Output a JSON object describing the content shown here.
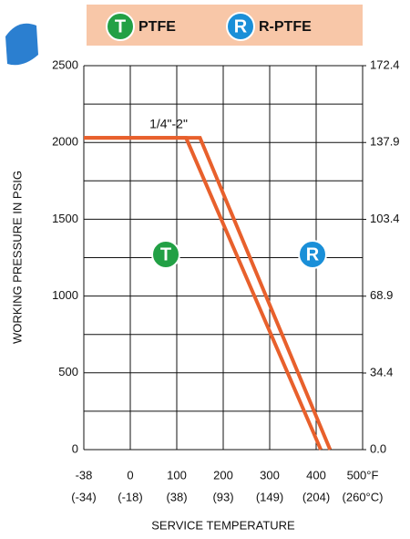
{
  "chart_data": {
    "type": "line",
    "legend": [
      {
        "badge": "T",
        "name": "PTFE",
        "color": "#22a045"
      },
      {
        "badge": "R",
        "name": "R-PTFE",
        "color": "#1a8fd8"
      }
    ],
    "annotation": "1/4\"-2\"",
    "x_label": "SERVICE TEMPERATURE",
    "y_label": "WORKING PRESSURE IN PSIG",
    "xlim": [
      -38,
      500
    ],
    "xticks": [
      -38,
      0,
      100,
      200,
      300,
      400,
      {
        "value": 500,
        "label": "500°F"
      }
    ],
    "xticks2": [
      "(-34)",
      "(-18)",
      "(38)",
      "(93)",
      "(149)",
      "(204)",
      "(260°C)"
    ],
    "ylim": [
      0,
      2500
    ],
    "yticks": [
      0,
      500,
      1000,
      1500,
      2000,
      2500
    ],
    "y_minor_ticks": [
      250,
      750,
      1250,
      1750,
      2250
    ],
    "y2lim": [
      0,
      172.4
    ],
    "y2ticks": [
      {
        "value": 0,
        "label": "0.0"
      },
      34.4,
      68.9,
      103.4,
      137.9,
      172.4
    ],
    "grid": true,
    "series": [
      {
        "name": "PTFE",
        "color": "#e8602c",
        "x": [
          -38,
          120,
          410
        ],
        "values": [
          2030,
          2030,
          0
        ]
      },
      {
        "name": "R-PTFE",
        "color": "#e8602c",
        "x": [
          -38,
          150,
          430
        ],
        "values": [
          2030,
          2030,
          0
        ]
      }
    ]
  }
}
